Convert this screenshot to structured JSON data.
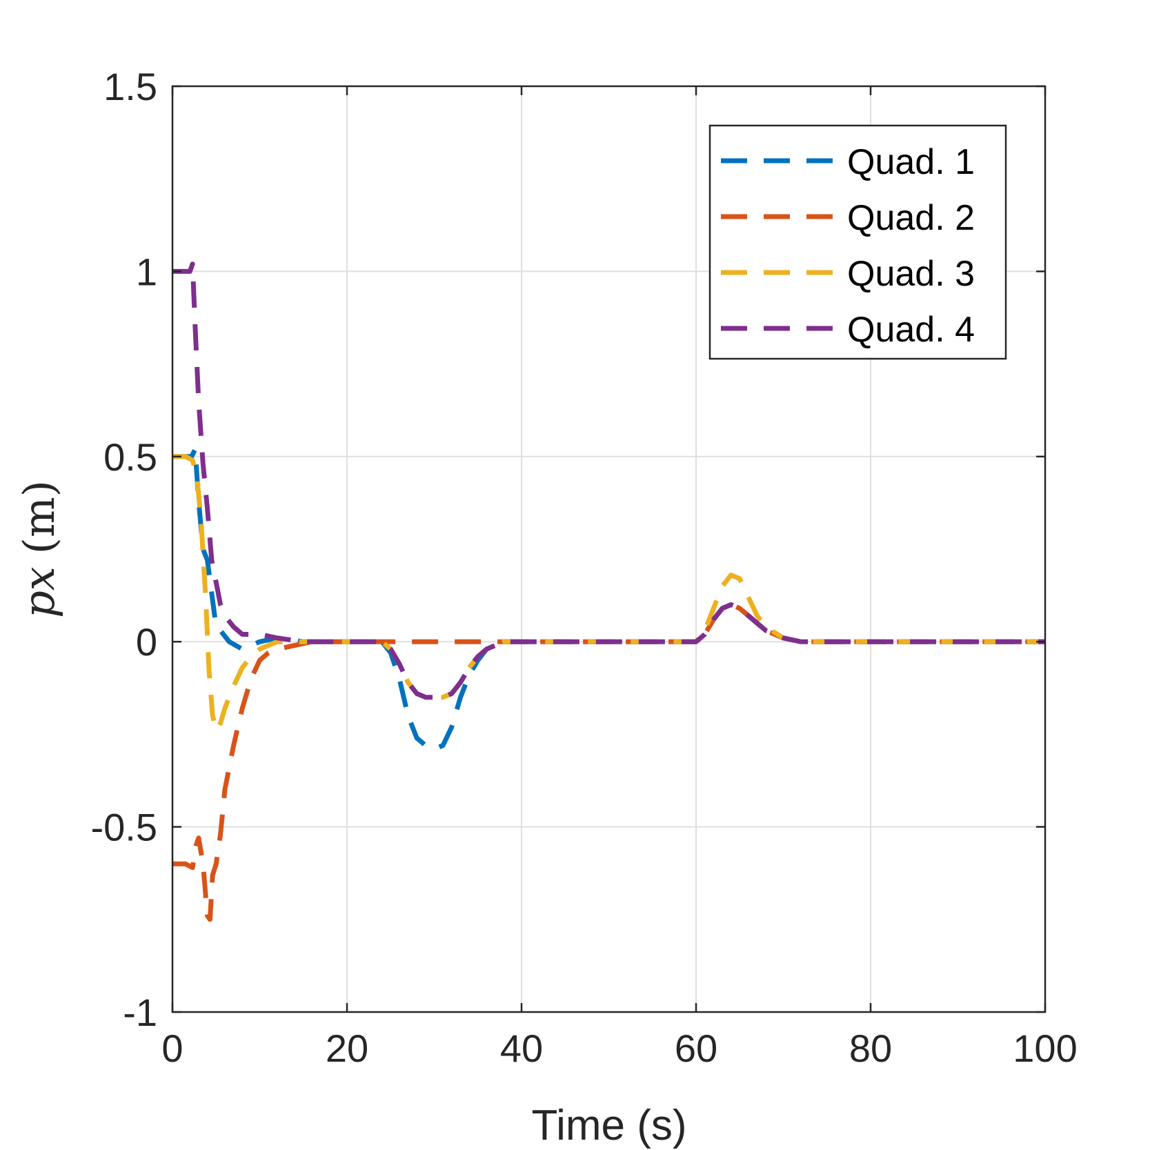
{
  "chart_data": {
    "type": "line",
    "xlabel": "Time (s)",
    "ylabel": {
      "var": "px",
      "unit": "(m)"
    },
    "xlim": [
      0,
      100
    ],
    "ylim": [
      -1,
      1.5
    ],
    "xticks": [
      0,
      20,
      40,
      60,
      80,
      100
    ],
    "xtick_labels": [
      "0",
      "20",
      "40",
      "60",
      "80",
      "100"
    ],
    "yticks": [
      -1,
      -0.5,
      0,
      0.5,
      1,
      1.5
    ],
    "ytick_labels": [
      "-1",
      "-0.5",
      "0",
      "0.5",
      "1",
      "1.5"
    ],
    "grid": true,
    "legend_position": "top-right",
    "line_style": "dashed",
    "series": [
      {
        "name": "Quad. 1",
        "color": "#0072BD",
        "x": [
          0,
          1.5,
          2.2,
          2.6,
          3.0,
          3.5,
          4.0,
          4.5,
          5.0,
          5.5,
          6.5,
          8,
          10,
          12,
          15,
          20,
          24,
          25,
          26,
          27,
          28,
          29,
          30,
          31,
          32,
          33,
          34,
          35,
          36,
          37,
          38,
          40,
          50,
          60,
          61,
          62,
          63,
          64,
          65,
          66,
          67,
          68,
          70,
          72,
          75,
          80,
          90,
          100
        ],
        "y": [
          0.5,
          0.5,
          0.5,
          0.52,
          0.38,
          0.25,
          0.22,
          0.13,
          0.04,
          0.03,
          0.0,
          -0.02,
          0.0,
          0.01,
          0.0,
          0.0,
          0.0,
          -0.03,
          -0.1,
          -0.2,
          -0.26,
          -0.28,
          -0.29,
          -0.28,
          -0.23,
          -0.15,
          -0.09,
          -0.05,
          -0.02,
          -0.01,
          0.0,
          0.0,
          0.0,
          0.0,
          0.02,
          0.06,
          0.09,
          0.1,
          0.09,
          0.07,
          0.05,
          0.03,
          0.01,
          0.0,
          0.0,
          0.0,
          0.0,
          0.0
        ]
      },
      {
        "name": "Quad. 2",
        "color": "#D95319",
        "x": [
          0,
          1.5,
          2.3,
          2.7,
          3.0,
          3.5,
          4.0,
          4.3,
          4.6,
          5.0,
          5.5,
          6.0,
          7.0,
          8.0,
          9.0,
          10,
          11,
          12,
          14,
          16,
          20,
          25,
          30,
          35,
          38,
          40,
          60,
          61,
          62,
          63,
          64,
          65,
          66,
          67,
          68,
          70,
          72,
          75,
          80,
          90,
          100
        ],
        "y": [
          -0.6,
          -0.6,
          -0.61,
          -0.55,
          -0.53,
          -0.6,
          -0.74,
          -0.75,
          -0.63,
          -0.6,
          -0.52,
          -0.4,
          -0.28,
          -0.18,
          -0.1,
          -0.05,
          -0.03,
          -0.02,
          -0.01,
          0.0,
          0.0,
          0.0,
          0.0,
          0.0,
          0.0,
          0.0,
          0.0,
          0.02,
          0.06,
          0.09,
          0.1,
          0.09,
          0.07,
          0.05,
          0.03,
          0.01,
          0.0,
          0.0,
          0.0,
          0.0,
          0.0
        ]
      },
      {
        "name": "Quad. 3",
        "color": "#EDB120",
        "x": [
          0,
          1.5,
          2.3,
          2.8,
          3.3,
          3.8,
          4.2,
          4.6,
          5.0,
          5.5,
          6.0,
          7.0,
          8.0,
          9.0,
          10,
          11,
          12,
          14,
          16,
          20,
          24,
          25,
          26,
          27,
          28,
          29,
          30,
          31,
          32,
          33,
          34,
          35,
          36,
          37,
          38,
          40,
          60,
          61,
          62,
          63,
          64,
          65,
          66,
          67,
          68,
          70,
          72,
          75,
          80,
          90,
          100
        ],
        "y": [
          0.5,
          0.5,
          0.49,
          0.45,
          0.32,
          0.12,
          -0.08,
          -0.2,
          -0.24,
          -0.22,
          -0.18,
          -0.12,
          -0.07,
          -0.04,
          -0.02,
          -0.01,
          0.0,
          0.0,
          0.0,
          0.0,
          0.0,
          -0.02,
          -0.06,
          -0.11,
          -0.14,
          -0.15,
          -0.15,
          -0.15,
          -0.14,
          -0.11,
          -0.07,
          -0.04,
          -0.02,
          -0.01,
          0.0,
          0.0,
          0.0,
          0.03,
          0.09,
          0.15,
          0.18,
          0.17,
          0.12,
          0.07,
          0.04,
          0.01,
          0.0,
          0.0,
          0.0,
          0.0,
          0.0
        ]
      },
      {
        "name": "Quad. 4",
        "color": "#7E2F8E",
        "x": [
          0,
          1.5,
          2.0,
          2.3,
          2.6,
          3.0,
          3.5,
          4.0,
          4.5,
          5.0,
          5.5,
          6.0,
          7.0,
          8.0,
          10,
          12,
          15,
          20,
          24,
          25,
          26,
          27,
          28,
          29,
          30,
          31,
          32,
          33,
          34,
          35,
          36,
          37,
          38,
          40,
          60,
          61,
          62,
          63,
          64,
          65,
          66,
          67,
          68,
          70,
          72,
          75,
          80,
          90,
          100
        ],
        "y": [
          1.0,
          1.0,
          1.0,
          1.02,
          0.85,
          0.65,
          0.48,
          0.36,
          0.22,
          0.16,
          0.1,
          0.07,
          0.04,
          0.02,
          0.02,
          0.01,
          0.0,
          0.0,
          0.0,
          -0.02,
          -0.06,
          -0.11,
          -0.14,
          -0.15,
          -0.15,
          -0.15,
          -0.14,
          -0.11,
          -0.07,
          -0.04,
          -0.02,
          -0.01,
          0.0,
          0.0,
          0.0,
          0.02,
          0.06,
          0.09,
          0.1,
          0.09,
          0.07,
          0.05,
          0.03,
          0.01,
          0.0,
          0.0,
          0.0,
          0.0,
          0.0
        ]
      }
    ]
  }
}
